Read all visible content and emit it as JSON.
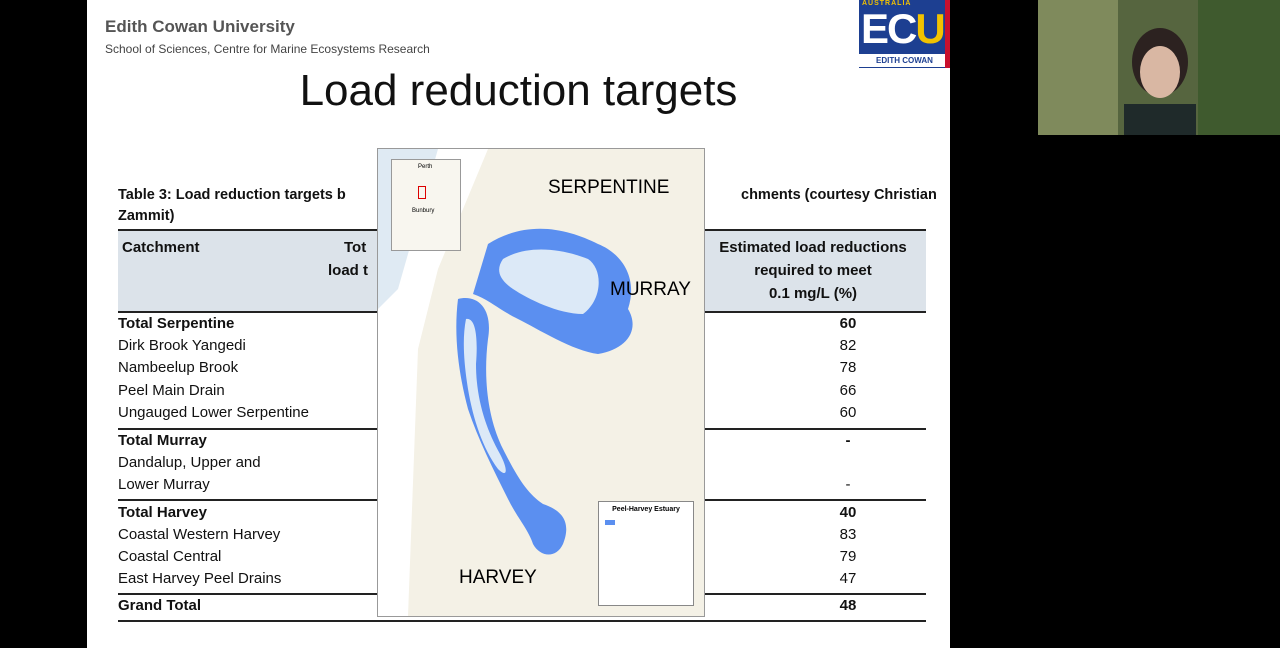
{
  "slide": {
    "org": "Edith Cowan University",
    "school": "School of Sciences, Centre for Marine Ecosystems Research",
    "logo": {
      "top": "AUSTRALIA",
      "ec": "EC",
      "u": "U",
      "name": "EDITH COWAN"
    },
    "title": "Load reduction targets",
    "caption_left": "Table 3: Load reduction targets b",
    "caption_right": "chments (courtesy Christian",
    "caption_line2": "Zammit)",
    "headers": {
      "catchment": "Catchment",
      "col2_a": "Tot",
      "col2_b": "load t",
      "col3_a": "Estimated load reductions",
      "col3_b": "required to meet",
      "col3_c": "0.1 mg/L (%)"
    },
    "rows": [
      {
        "name": "Total Serpentine",
        "value": "60",
        "bold": true
      },
      {
        "name": "Dirk Brook Yangedi",
        "value": "82"
      },
      {
        "name": "Nambeelup Brook",
        "value": "78"
      },
      {
        "name": "Peel Main Drain",
        "value": "66"
      },
      {
        "name": "Ungauged Lower Serpentine",
        "value": "60"
      },
      {
        "name": "Total Murray",
        "value": "-",
        "bold": true
      },
      {
        "name": "Dandalup, Upper and",
        "value": ""
      },
      {
        "name": "Lower Murray",
        "value": "-"
      },
      {
        "name": "Total Harvey",
        "value": "40",
        "bold": true
      },
      {
        "name": "Coastal Western Harvey",
        "value": "83"
      },
      {
        "name": "Coastal Central",
        "value": "79"
      },
      {
        "name": "East Harvey Peel Drains",
        "value": "47"
      },
      {
        "name": "Grand Total",
        "value": "48",
        "bold": true
      }
    ],
    "map": {
      "serpentine": "SERPENTINE",
      "murray": "MURRAY",
      "harvey": "HARVEY",
      "legend_title": "Peel-Harvey Estuary",
      "inset_city": "Perth",
      "inset_city2": "Bunbury"
    }
  },
  "colors": {
    "estuary": "#5b8ff0",
    "table_header_bg": "#dce3ea",
    "logo_blue": "#1d3f91",
    "logo_gold": "#f2c200"
  }
}
